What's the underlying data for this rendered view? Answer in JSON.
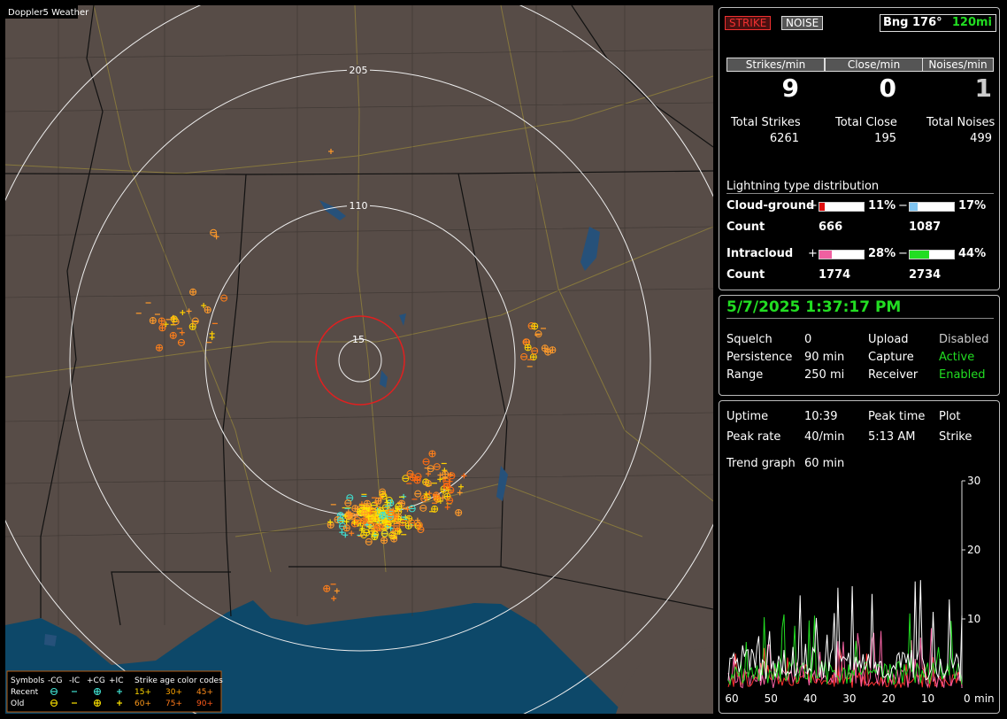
{
  "map": {
    "title": "Doppler5 Weather",
    "range_labels": [
      "205",
      "110",
      "15"
    ],
    "legend": {
      "symbols_label": "Symbols",
      "symbol_types": [
        "-CG",
        "-IC",
        "+CG",
        "+IC"
      ],
      "age_label": "Strike age color codes",
      "rows": [
        {
          "label": "Recent",
          "ages": [
            "15+",
            "30+",
            "45+"
          ]
        },
        {
          "label": "Old",
          "ages": [
            "60+",
            "75+",
            "90+"
          ]
        }
      ]
    }
  },
  "header": {
    "strike_button": "STRIKE",
    "noise_button": "NOISE",
    "bearing": "Bng 176°",
    "distance": "120mi"
  },
  "rates": [
    {
      "label": "Strikes/min",
      "value": "9",
      "total_label": "Total Strikes",
      "total": "6261"
    },
    {
      "label": "Close/min",
      "value": "0",
      "total_label": "Total Close",
      "total": "195"
    },
    {
      "label": "Noises/min",
      "value": "1",
      "total_label": "Total Noises",
      "total": "499"
    }
  ],
  "distribution": {
    "title": "Lightning type distribution",
    "rows": [
      {
        "name": "Cloud-ground",
        "pos_sign": "+",
        "pos_pct": "11%",
        "neg_sign": "−",
        "neg_pct": "17%",
        "count_label": "Count",
        "pos_count": "666",
        "neg_count": "1087"
      },
      {
        "name": "Intracloud",
        "pos_sign": "+",
        "pos_pct": "28%",
        "neg_sign": "−",
        "neg_pct": "44%",
        "count_label": "Count",
        "pos_count": "1774",
        "neg_count": "2734"
      }
    ]
  },
  "status": {
    "datetime": "5/7/2025 1:37:17 PM",
    "items": [
      [
        "Squelch",
        "0",
        "Upload",
        "Disabled"
      ],
      [
        "Persistence",
        "90 min",
        "Capture",
        "Active"
      ],
      [
        "Range",
        "250 mi",
        "Receiver",
        "Enabled"
      ]
    ]
  },
  "stats": {
    "rows": [
      [
        "Uptime",
        "10:39",
        "Peak time",
        "Plot"
      ],
      [
        "Peak rate",
        "40/min",
        "5:13 AM",
        "Strike"
      ]
    ],
    "trend_label": "Trend graph",
    "trend_value": "60 min"
  },
  "graph": {
    "yticks": [
      "30",
      "20",
      "10"
    ],
    "xticks": [
      "60",
      "50",
      "40",
      "30",
      "20",
      "10",
      "0"
    ],
    "x_unit": "min"
  }
}
